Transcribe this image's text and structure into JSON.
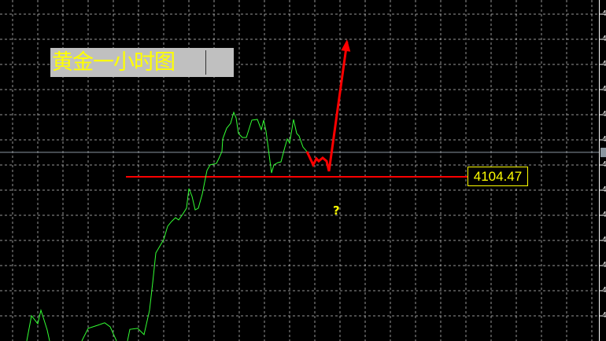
{
  "title_label": "黄金一小时图",
  "price_label": "4104.47",
  "question_mark": "?",
  "axis_tick_label_partial": "4",
  "colors": {
    "background": "#000000",
    "grid": "#c8c8c8",
    "price_line": "#33ff33",
    "projection": "#ff0000",
    "support_line": "#ff0000",
    "annotation": "#ffff00",
    "bid_line": "#8a96a0"
  },
  "chart_data": {
    "type": "line",
    "title": "黄金一小时图",
    "grid": true,
    "ylim": [
      4035,
      4165
    ],
    "support_level": 4104.47,
    "bid_level": 4114.2,
    "series": [
      {
        "role": "price",
        "color": "#33ff33",
        "segments": [
          [
            [
              8.5,
              4039.2
            ],
            [
              10,
              4049.2
            ],
            [
              12,
              4046.0
            ],
            [
              13,
              4051.4
            ],
            [
              13.75,
              4048.5
            ],
            [
              15,
              4043.5
            ],
            [
              15.75,
              4039.2
            ]
          ],
          [
            [
              26,
              4039.2
            ],
            [
              28,
              4044.2
            ],
            [
              31,
              4045.4
            ],
            [
              33.25,
              4046.4
            ],
            [
              35,
              4044.8
            ],
            [
              37,
              4039.2
            ]
          ],
          [
            [
              40.5,
              4039.2
            ],
            [
              41.25,
              4043.8
            ],
            [
              43.75,
              4044.2
            ],
            [
              45.75,
              4041.7
            ],
            [
              47.5,
              4051.4
            ],
            [
              48.5,
              4062.3
            ],
            [
              49.5,
              4074.2
            ],
            [
              52,
              4079.5
            ],
            [
              53.25,
              4084.8
            ],
            [
              54.5,
              4086.7
            ],
            [
              55.75,
              4088.2
            ],
            [
              56.75,
              4087.3
            ],
            [
              58,
              4089.5
            ],
            [
              59.25,
              4092.0
            ],
            [
              60,
              4099.8
            ],
            [
              61,
              4096.7
            ],
            [
              62,
              4091.3
            ],
            [
              63,
              4092.0
            ],
            [
              64.25,
              4097.6
            ],
            [
              65.75,
              4107.0
            ],
            [
              66.75,
              4109.2
            ],
            [
              68.75,
              4109.8
            ],
            [
              69.5,
              4111.7
            ],
            [
              70.5,
              4114.5
            ],
            [
              70.75,
              4119.5
            ],
            [
              72,
              4123.8
            ],
            [
              73.25,
              4125.7
            ],
            [
              74.25,
              4130.1
            ],
            [
              75,
              4127.9
            ],
            [
              75.75,
              4121.7
            ],
            [
              77,
              4120.1
            ],
            [
              78.25,
              4120.1
            ],
            [
              80,
              4127.0
            ],
            [
              81.75,
              4127.3
            ],
            [
              83,
              4123.2
            ],
            [
              83.75,
              4127.0
            ],
            [
              84.5,
              4122.6
            ],
            [
              85.5,
              4113.2
            ],
            [
              86.25,
              4106.0
            ],
            [
              87,
              4109.2
            ],
            [
              88.25,
              4110.1
            ],
            [
              89.25,
              4110.4
            ],
            [
              90.5,
              4116.3
            ],
            [
              91.25,
              4119.5
            ],
            [
              92,
              4117.9
            ],
            [
              93.25,
              4127.3
            ],
            [
              94.25,
              4121.7
            ],
            [
              95,
              4120.7
            ],
            [
              96.25,
              4116.3
            ],
            [
              97.5,
              4114.5
            ]
          ]
        ]
      },
      {
        "role": "projection",
        "color": "#ff0000",
        "segments": [
          [
            [
              97.5,
              4114.5
            ],
            [
              99.5,
              4109.2
            ],
            [
              100.5,
              4111.7
            ],
            [
              101.25,
              4110.7
            ],
            [
              102.5,
              4112.0
            ],
            [
              103.75,
              4110.7
            ],
            [
              104.5,
              4106.7
            ],
            [
              110.25,
              4158.2
            ]
          ]
        ]
      }
    ]
  }
}
